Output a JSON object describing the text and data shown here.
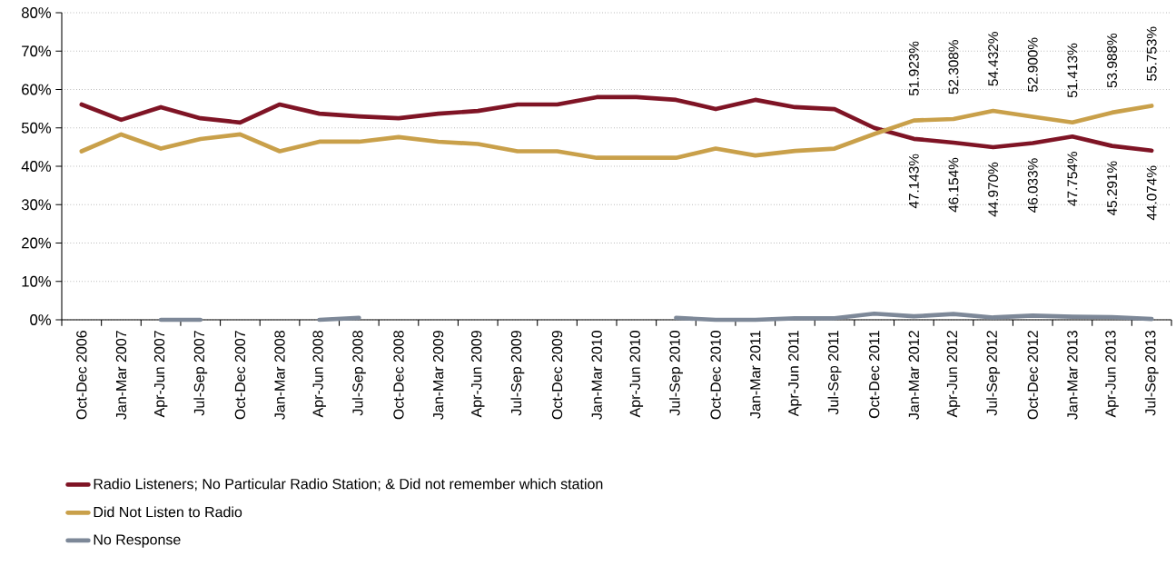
{
  "chart_data": {
    "type": "line",
    "categories": [
      "Oct-Dec 2006",
      "Jan-Mar 2007",
      "Apr-Jun 2007",
      "Jul-Sep 2007",
      "Oct-Dec 2007",
      "Jan-Mar 2008",
      "Apr-Jun 2008",
      "Jul-Sep 2008",
      "Oct-Dec 2008",
      "Jan-Mar 2009",
      "Apr-Jun 2009",
      "Jul-Sep 2009",
      "Oct-Dec 2009",
      "Jan-Mar 2010",
      "Apr-Jun 2010",
      "Jul-Sep 2010",
      "Oct-Dec 2010",
      "Jan-Mar 2011",
      "Apr-Jun 2011",
      "Jul-Sep 2011",
      "Oct-Dec 2011",
      "Jan-Mar 2012",
      "Apr-Jun 2012",
      "Jul-Sep 2012",
      "Oct-Dec 2012",
      "Jan-Mar 2013",
      "Apr-Jun 2013",
      "Jul-Sep 2013"
    ],
    "series": [
      {
        "name": "Radio Listeners; No Particular Radio Station; &  Did not remember which station",
        "color": "#7f1425",
        "values": [
          56.1,
          52.1,
          55.4,
          52.5,
          51.4,
          56.1,
          53.7,
          53.0,
          52.5,
          53.7,
          54.4,
          56.1,
          56.1,
          58.0,
          58.0,
          57.3,
          54.9,
          57.3,
          55.4,
          54.9,
          50.0,
          47.143,
          46.154,
          44.97,
          46.033,
          47.754,
          45.291,
          44.074
        ],
        "value_labels": [
          null,
          null,
          null,
          null,
          null,
          null,
          null,
          null,
          null,
          null,
          null,
          null,
          null,
          null,
          null,
          null,
          null,
          null,
          null,
          null,
          null,
          "47.143%",
          "46.154%",
          "44.970%",
          "46.033%",
          "47.754%",
          "45.291%",
          "44.074%"
        ]
      },
      {
        "name": "Did Not Listen to Radio",
        "color": "#c9a04a",
        "values": [
          43.9,
          48.3,
          44.6,
          47.1,
          48.3,
          43.9,
          46.4,
          46.4,
          47.6,
          46.4,
          45.8,
          43.9,
          43.9,
          42.2,
          42.2,
          42.2,
          44.6,
          42.8,
          44.0,
          44.6,
          48.4,
          51.923,
          52.308,
          54.432,
          52.9,
          51.413,
          53.988,
          55.753
        ],
        "value_labels": [
          null,
          null,
          null,
          null,
          null,
          null,
          null,
          null,
          null,
          null,
          null,
          null,
          null,
          null,
          null,
          null,
          null,
          null,
          null,
          null,
          null,
          "51.923%",
          "52.308%",
          "54.432%",
          "52.900%",
          "51.413%",
          "53.988%",
          "55.753%"
        ]
      },
      {
        "name": "No Response",
        "color": "#7d8898",
        "values": [
          null,
          null,
          0,
          0,
          null,
          null,
          0,
          0.5,
          null,
          null,
          null,
          null,
          null,
          null,
          null,
          0.5,
          0,
          0,
          0.4,
          0.4,
          1.6,
          0.9,
          1.5,
          0.6,
          1.1,
          0.8,
          0.7,
          0.2
        ]
      }
    ],
    "ylim": [
      0,
      80
    ],
    "yticks": [
      {
        "value": 0,
        "label": "0%"
      },
      {
        "value": 10,
        "label": "10%"
      },
      {
        "value": 20,
        "label": "20%"
      },
      {
        "value": 30,
        "label": "30%"
      },
      {
        "value": 40,
        "label": "40%"
      },
      {
        "value": 50,
        "label": "50%"
      },
      {
        "value": 60,
        "label": "60%"
      },
      {
        "value": 70,
        "label": "70%"
      },
      {
        "value": 80,
        "label": "80%"
      }
    ],
    "grid": "y",
    "legend": "bottom",
    "marker": "none",
    "line_style": "solid"
  }
}
